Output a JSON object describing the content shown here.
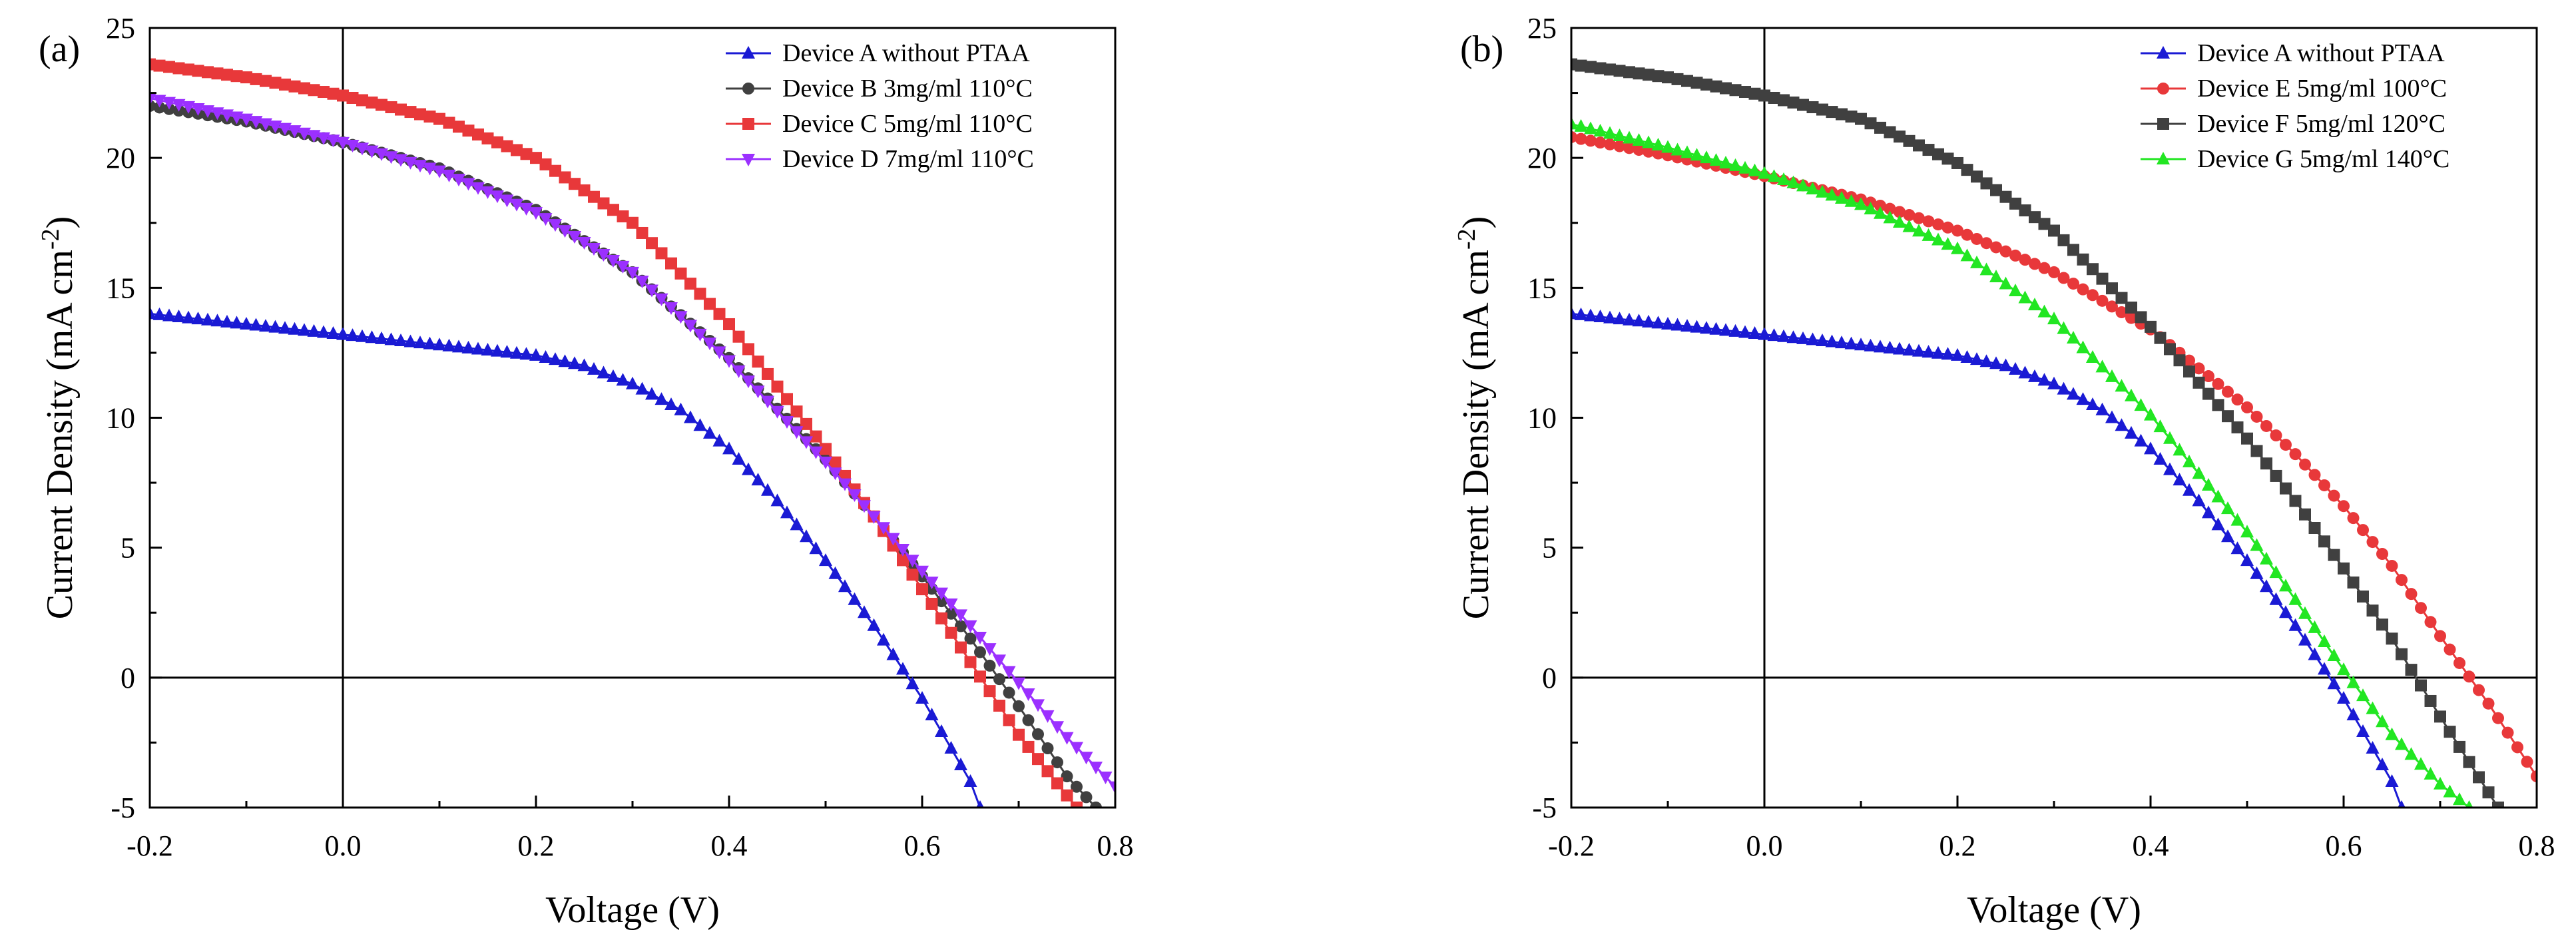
{
  "chart_data": [
    {
      "type": "line",
      "panel_label": "(a)",
      "title": "",
      "xlabel": "Voltage (V)",
      "ylabel": "Current Density (mA cm",
      "ylabel_sup": "-2",
      "ylabel_tail": ")",
      "xlim": [
        -0.2,
        0.8
      ],
      "ylim": [
        -5,
        25
      ],
      "xticks": [
        "-0.2",
        "0.0",
        "0.2",
        "0.4",
        "0.6",
        "0.8"
      ],
      "yticks": [
        "-5",
        "0",
        "5",
        "10",
        "15",
        "20",
        "25"
      ],
      "legend_position": "top-right",
      "series": [
        {
          "name": "Device A without PTAA",
          "color": "#1a1ad4",
          "marker": "triangle-up",
          "x": [
            -0.2,
            -0.1,
            0.0,
            0.1,
            0.2,
            0.25,
            0.3,
            0.35,
            0.4,
            0.45,
            0.5,
            0.55,
            0.6,
            0.65,
            0.66
          ],
          "y": [
            14.0,
            13.6,
            13.2,
            12.8,
            12.4,
            12.0,
            11.3,
            10.3,
            8.8,
            6.8,
            4.5,
            2.0,
            -0.8,
            -4.0,
            -5.0
          ]
        },
        {
          "name": "Device B 3mg/ml 110°C",
          "color": "#404040",
          "marker": "circle",
          "x": [
            -0.2,
            -0.1,
            0.0,
            0.1,
            0.2,
            0.3,
            0.4,
            0.5,
            0.55,
            0.6,
            0.65,
            0.7,
            0.75,
            0.78
          ],
          "y": [
            22.0,
            21.4,
            20.6,
            19.6,
            18.0,
            15.6,
            12.3,
            8.4,
            6.2,
            3.9,
            1.5,
            -1.1,
            -3.8,
            -5.0
          ]
        },
        {
          "name": "Device C 5mg/ml 110°C",
          "color": "#e8383a",
          "marker": "square",
          "x": [
            -0.2,
            -0.1,
            0.0,
            0.1,
            0.2,
            0.3,
            0.4,
            0.5,
            0.55,
            0.6,
            0.65,
            0.7,
            0.76
          ],
          "y": [
            23.6,
            23.1,
            22.4,
            21.5,
            20.0,
            17.5,
            13.6,
            8.8,
            6.2,
            3.4,
            0.6,
            -2.2,
            -5.0
          ]
        },
        {
          "name": "Device D 7mg/ml 110°C",
          "color": "#9b30ff",
          "marker": "triangle-down",
          "x": [
            -0.2,
            -0.1,
            0.0,
            0.1,
            0.2,
            0.3,
            0.4,
            0.5,
            0.55,
            0.6,
            0.65,
            0.7,
            0.75,
            0.8
          ],
          "y": [
            22.3,
            21.5,
            20.6,
            19.5,
            17.9,
            15.6,
            12.2,
            8.3,
            6.2,
            4.1,
            2.0,
            -0.2,
            -2.3,
            -4.2
          ]
        }
      ]
    },
    {
      "type": "line",
      "panel_label": "(b)",
      "title": "",
      "xlabel": "Voltage (V)",
      "ylabel": "Current Density (mA cm",
      "ylabel_sup": "-2",
      "ylabel_tail": ")",
      "xlim": [
        -0.2,
        0.8
      ],
      "ylim": [
        -5,
        25
      ],
      "xticks": [
        "-0.2",
        "0.0",
        "0.2",
        "0.4",
        "0.6",
        "0.8"
      ],
      "yticks": [
        "-5",
        "0",
        "5",
        "10",
        "15",
        "20",
        "25"
      ],
      "legend_position": "top-right",
      "series": [
        {
          "name": "Device A without PTAA",
          "color": "#1a1ad4",
          "marker": "triangle-up",
          "x": [
            -0.2,
            -0.1,
            0.0,
            0.1,
            0.2,
            0.25,
            0.3,
            0.35,
            0.4,
            0.45,
            0.5,
            0.55,
            0.6,
            0.65,
            0.66
          ],
          "y": [
            14.0,
            13.6,
            13.2,
            12.8,
            12.4,
            12.0,
            11.3,
            10.3,
            8.8,
            6.8,
            4.5,
            2.0,
            -0.8,
            -4.0,
            -5.0
          ]
        },
        {
          "name": "Device E 5mg/ml 100°C",
          "color": "#e8383a",
          "marker": "circle",
          "x": [
            -0.2,
            -0.1,
            0.0,
            0.1,
            0.2,
            0.3,
            0.4,
            0.5,
            0.55,
            0.6,
            0.65,
            0.7,
            0.75,
            0.8
          ],
          "y": [
            20.8,
            20.1,
            19.3,
            18.4,
            17.2,
            15.6,
            13.4,
            10.4,
            8.6,
            6.6,
            4.3,
            1.6,
            -1.0,
            -3.8
          ]
        },
        {
          "name": "Device F 5mg/ml 120°C",
          "color": "#404040",
          "marker": "square",
          "x": [
            -0.2,
            -0.1,
            0.0,
            0.1,
            0.2,
            0.3,
            0.4,
            0.5,
            0.55,
            0.6,
            0.65,
            0.7,
            0.76
          ],
          "y": [
            23.6,
            23.1,
            22.4,
            21.5,
            19.8,
            17.2,
            13.5,
            9.2,
            6.8,
            4.2,
            1.5,
            -1.5,
            -5.0
          ]
        },
        {
          "name": "Device G 5mg/ml 140°C",
          "color": "#22e622",
          "marker": "triangle-up",
          "x": [
            -0.2,
            -0.1,
            0.0,
            0.1,
            0.2,
            0.3,
            0.4,
            0.5,
            0.55,
            0.6,
            0.65,
            0.7,
            0.73
          ],
          "y": [
            21.3,
            20.4,
            19.4,
            18.2,
            16.5,
            13.8,
            10.1,
            5.6,
            3.0,
            0.3,
            -2.2,
            -4.1,
            -5.0
          ]
        }
      ]
    }
  ]
}
